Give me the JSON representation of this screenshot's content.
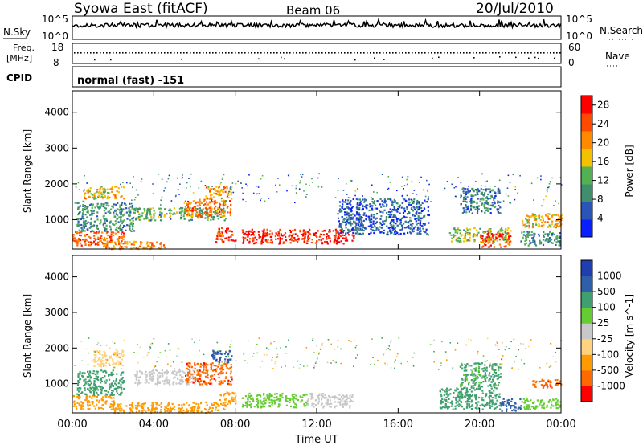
{
  "header": {
    "station": "Syowa East (fitACF)",
    "beam": "Beam 06",
    "date": "20/Jul/2010"
  },
  "panels": {
    "nsky": {
      "label": "N.Sky",
      "top": "10^5",
      "bottom": "10^0",
      "right_label": "N.Search",
      "right_top": "10^5",
      "right_bottom": "10^0"
    },
    "freq": {
      "label_line1": "Freq.",
      "label_line2": "[MHz]",
      "top": "18",
      "bottom": "8",
      "right_label": "Nave",
      "right_top": "60",
      "right_bottom": "0"
    },
    "cpid": {
      "label": "CPID",
      "mode": "normal (fast) -151"
    }
  },
  "colors": {
    "power": [
      "#0a1fff",
      "#2a54b8",
      "#3f8f6f",
      "#53b053",
      "#f2c200",
      "#ff8a00",
      "#ff4a00",
      "#ff0000"
    ],
    "velocity": [
      "#ff0000",
      "#ff6a00",
      "#ff9a00",
      "#ffd27f",
      "#c8c8c8",
      "#66cc33",
      "#3f9f6f",
      "#2f5fa8",
      "#1f3fb0"
    ]
  },
  "chart_data": [
    {
      "type": "heatmap",
      "title": "Power",
      "ylabel": "Slant Range [km]",
      "xlabel": "",
      "x_ticks": [
        "00:00",
        "04:00",
        "08:00",
        "12:00",
        "16:00",
        "20:00",
        "00:00"
      ],
      "y_ticks": [
        "1000",
        "2000",
        "3000",
        "4000"
      ],
      "xlim": [
        0,
        24
      ],
      "ylim": [
        180,
        4600
      ],
      "colorbar": {
        "label": "Power [dB]",
        "ticks": [
          "4",
          "8",
          "12",
          "16",
          "20",
          "24",
          "28"
        ],
        "range": [
          0,
          30
        ]
      },
      "regions": [
        {
          "t0": 0.0,
          "t1": 2.5,
          "r0": 300,
          "r1": 700,
          "v": 24
        },
        {
          "t0": 0.2,
          "t1": 3.0,
          "r0": 700,
          "r1": 1500,
          "v": 10
        },
        {
          "t0": 0.5,
          "t1": 2.5,
          "r0": 1600,
          "r1": 1950,
          "v": 18
        },
        {
          "t0": 1.5,
          "t1": 4.5,
          "r0": 200,
          "r1": 420,
          "v": 20
        },
        {
          "t0": 3.0,
          "t1": 7.5,
          "r0": 1000,
          "r1": 1350,
          "v": 12
        },
        {
          "t0": 5.5,
          "t1": 7.8,
          "r0": 1100,
          "r1": 1600,
          "v": 22
        },
        {
          "t0": 6.5,
          "t1": 7.8,
          "r0": 1600,
          "r1": 1950,
          "v": 20
        },
        {
          "t0": 7.0,
          "t1": 8.0,
          "r0": 400,
          "r1": 800,
          "v": 26
        },
        {
          "t0": 8.3,
          "t1": 13.8,
          "r0": 350,
          "r1": 750,
          "v": 28
        },
        {
          "t0": 13.0,
          "t1": 17.5,
          "r0": 600,
          "r1": 1600,
          "v": 6
        },
        {
          "t0": 18.5,
          "t1": 21.5,
          "r0": 400,
          "r1": 800,
          "v": 14
        },
        {
          "t0": 20.0,
          "t1": 21.5,
          "r0": 250,
          "r1": 650,
          "v": 26
        },
        {
          "t0": 19.0,
          "t1": 21.0,
          "r0": 1200,
          "r1": 1900,
          "v": 8
        },
        {
          "t0": 22.0,
          "t1": 24.0,
          "r0": 800,
          "r1": 1200,
          "v": 18
        },
        {
          "t0": 22.0,
          "t1": 24.0,
          "r0": 300,
          "r1": 700,
          "v": 10
        }
      ]
    },
    {
      "type": "heatmap",
      "title": "Velocity",
      "ylabel": "Slant Range [km]",
      "xlabel": "Time UT",
      "x_ticks": [
        "00:00",
        "04:00",
        "08:00",
        "12:00",
        "16:00",
        "20:00",
        "00:00"
      ],
      "y_ticks": [
        "1000",
        "2000",
        "3000",
        "4000"
      ],
      "xlim": [
        0,
        24
      ],
      "ylim": [
        180,
        4600
      ],
      "colorbar": {
        "label": "Velocity [m s^-1]",
        "ticks": [
          "1000",
          "500",
          "100",
          "25",
          "-25",
          "-100",
          "-500",
          "-1000"
        ]
      },
      "regions": [
        {
          "t0": 0.0,
          "t1": 2.0,
          "r0": 300,
          "r1": 700,
          "v": -300
        },
        {
          "t0": 2.0,
          "t1": 7.5,
          "r0": 200,
          "r1": 500,
          "v": -150
        },
        {
          "t0": 0.2,
          "t1": 2.5,
          "r0": 700,
          "r1": 1400,
          "v": 200
        },
        {
          "t0": 1.0,
          "t1": 2.5,
          "r0": 1500,
          "r1": 1950,
          "v": -80
        },
        {
          "t0": 3.0,
          "t1": 6.0,
          "r0": 1000,
          "r1": 1400,
          "v": 0
        },
        {
          "t0": 5.5,
          "t1": 7.8,
          "r0": 1000,
          "r1": 1600,
          "v": -800
        },
        {
          "t0": 6.8,
          "t1": 7.8,
          "r0": 1600,
          "r1": 1950,
          "v": 800
        },
        {
          "t0": 7.2,
          "t1": 8.0,
          "r0": 400,
          "r1": 800,
          "v": -120
        },
        {
          "t0": 8.3,
          "t1": 11.5,
          "r0": 350,
          "r1": 750,
          "v": 60
        },
        {
          "t0": 11.5,
          "t1": 13.8,
          "r0": 350,
          "r1": 750,
          "v": 0
        },
        {
          "t0": 18.0,
          "t1": 21.0,
          "r0": 300,
          "r1": 900,
          "v": 250
        },
        {
          "t0": 19.0,
          "t1": 21.0,
          "r0": 900,
          "r1": 1600,
          "v": 120
        },
        {
          "t0": 21.0,
          "t1": 22.0,
          "r0": 250,
          "r1": 600,
          "v": 800
        },
        {
          "t0": 22.5,
          "t1": 24.0,
          "r0": 900,
          "r1": 1150,
          "v": -800
        },
        {
          "t0": 22.0,
          "t1": 24.0,
          "r0": 300,
          "r1": 600,
          "v": 80
        }
      ]
    }
  ]
}
